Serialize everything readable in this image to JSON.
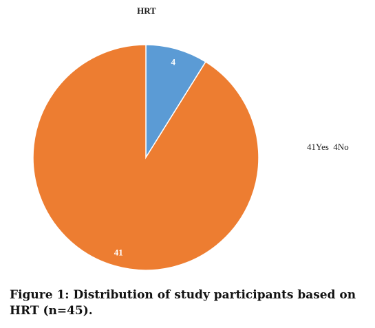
{
  "chart_data": {
    "type": "pie",
    "title": "HRT",
    "categories": [
      "Yes",
      "No"
    ],
    "values": [
      41,
      4
    ],
    "slice_labels": [
      "41",
      "4"
    ],
    "colors": [
      "#ED7D31",
      "#5B9BD5"
    ],
    "legend_text": "41Yes  4No",
    "legend_position": "right"
  },
  "caption": {
    "text": "Figure 1: Distribution of study participants based on HRT (n=45)."
  }
}
